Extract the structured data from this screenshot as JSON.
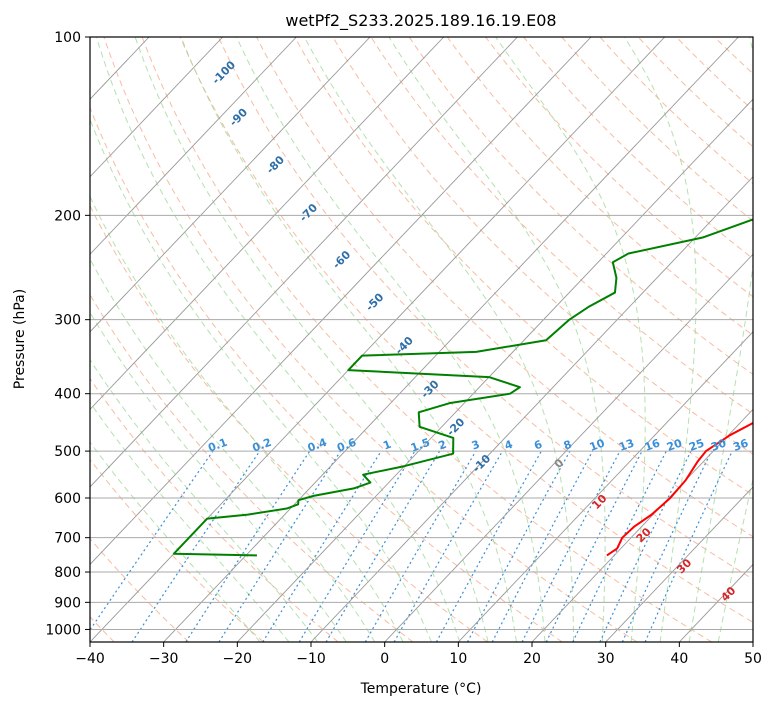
{
  "chart_data": {
    "type": "line",
    "title": "wetPf2_S233.2025.189.16.19.E08",
    "xlabel": "Temperature (°C)",
    "ylabel": "Pressure (hPa)",
    "xlim": [
      -40,
      50
    ],
    "ylim": [
      1050,
      100
    ],
    "y_scale": "log",
    "x_ticks": [
      -40,
      -30,
      -20,
      -10,
      0,
      10,
      20,
      30,
      40,
      50
    ],
    "x_tick_labels": [
      "−40",
      "−30",
      "−20",
      "−10",
      "0",
      "10",
      "20",
      "30",
      "40",
      "50"
    ],
    "y_ticks": [
      100,
      200,
      300,
      400,
      500,
      600,
      700,
      800,
      900,
      1000
    ],
    "y_tick_labels": [
      "100",
      "200",
      "300",
      "400",
      "500",
      "600",
      "700",
      "800",
      "900",
      "1000"
    ],
    "series": [
      {
        "name": "",
        "color": "#ff0000",
        "points": [
          [
            19.0,
            750
          ],
          [
            19.5,
            730
          ],
          [
            18.8,
            700
          ],
          [
            19.0,
            670
          ],
          [
            19.8,
            640
          ],
          [
            20.2,
            600
          ],
          [
            20.0,
            560
          ],
          [
            19.2,
            520
          ],
          [
            19.0,
            500
          ],
          [
            20.2,
            470
          ],
          [
            22.0,
            445
          ],
          [
            23.0,
            420
          ],
          [
            22.0,
            385
          ],
          [
            20.0,
            350
          ],
          [
            15.0,
            300
          ],
          [
            10.5,
            260
          ],
          [
            6.5,
            220
          ],
          [
            3.5,
            185
          ],
          [
            1.5,
            160
          ],
          [
            1.5,
            140
          ],
          [
            1.5,
            125
          ],
          [
            2.5,
            112
          ],
          [
            3.5,
            100
          ]
        ]
      },
      {
        "name": "",
        "color": "#008000",
        "points": [
          [
            -28.5,
            750
          ],
          [
            -40.0,
            745
          ],
          [
            -40.0,
            650
          ],
          [
            -35.0,
            640
          ],
          [
            -30.5,
            625
          ],
          [
            -29.5,
            615
          ],
          [
            -30.0,
            605
          ],
          [
            -28.5,
            595
          ],
          [
            -24.0,
            578
          ],
          [
            -22.5,
            565
          ],
          [
            -24.5,
            548
          ],
          [
            -20.0,
            530
          ],
          [
            -15.0,
            505
          ],
          [
            -17.0,
            475
          ],
          [
            -23.0,
            455
          ],
          [
            -25.0,
            430
          ],
          [
            -22.0,
            415
          ],
          [
            -15.0,
            400
          ],
          [
            -14.5,
            390
          ],
          [
            -20.0,
            375
          ],
          [
            -40.0,
            365
          ],
          [
            -40.0,
            345
          ],
          [
            -25.0,
            340
          ],
          [
            -17.0,
            325
          ],
          [
            -16.5,
            300
          ],
          [
            -15.5,
            285
          ],
          [
            -13.8,
            270
          ],
          [
            -15.5,
            255
          ],
          [
            -18.0,
            240
          ],
          [
            -17.0,
            232
          ],
          [
            -9.0,
            218
          ],
          [
            -3.5,
            200
          ],
          [
            -1.5,
            185
          ],
          [
            0.0,
            165
          ],
          [
            -0.5,
            148
          ],
          [
            -3.5,
            140
          ],
          [
            -3.5,
            128
          ],
          [
            -1.0,
            115
          ],
          [
            2.5,
            100
          ]
        ]
      }
    ],
    "dry_adiabat_labels": [
      "-100",
      "-90",
      "-80",
      "-70",
      "-60",
      "-50",
      "-40",
      "-30",
      "-20",
      "-10"
    ],
    "moist_adiabat_labels": [
      "0",
      "10",
      "20",
      "30",
      "40"
    ],
    "mixing_ratio_labels": [
      "0.1",
      "0.2",
      "0.4",
      "0.6",
      "1",
      "1.5",
      "2",
      "3",
      "4",
      "6",
      "8",
      "10",
      "13",
      "16",
      "20",
      "25",
      "30",
      "36"
    ],
    "grid": true,
    "colors": {
      "isotherm": "#999999",
      "isobar": "#aaaaaa",
      "dry_adiabat": "#f4a582",
      "moist_adiabat": "#a1d99b",
      "mixing_ratio": "#3a8fd8",
      "temperature": "#ff0000",
      "dewpoint": "#008000"
    }
  }
}
